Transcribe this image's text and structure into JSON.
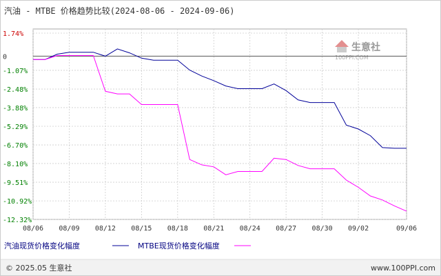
{
  "title": "汽油 - MTBE 价格趋势比较(2024-08-06 - 2024-09-06)",
  "watermark": {
    "name": "生意社",
    "url": "100PPI.COM"
  },
  "footer": {
    "left": "© 2025.05 生意社",
    "right": "www.100PPI.com"
  },
  "colors": {
    "series1": "#000099",
    "series2": "#ff00ff",
    "grid": "#cccccc",
    "axis": "#555555",
    "frame": "#aaaaaa"
  },
  "chart_data": {
    "type": "line",
    "ylim": [
      -12.32,
      1.74
    ],
    "y_ticks": [
      {
        "label": "1.74%",
        "value": 1.74,
        "color": "#cc0000"
      },
      {
        "label": "0",
        "value": 0,
        "color": "#333333"
      },
      {
        "label": "-1.07%",
        "value": -1.07,
        "color": "#008000"
      },
      {
        "label": "-2.48%",
        "value": -2.48,
        "color": "#008000"
      },
      {
        "label": "-3.88%",
        "value": -3.88,
        "color": "#008000"
      },
      {
        "label": "-5.29%",
        "value": -5.29,
        "color": "#008000"
      },
      {
        "label": "-6.70%",
        "value": -6.7,
        "color": "#008000"
      },
      {
        "label": "-8.10%",
        "value": -8.1,
        "color": "#008000"
      },
      {
        "label": "-9.51%",
        "value": -9.51,
        "color": "#008000"
      },
      {
        "label": "-10.92%",
        "value": -10.92,
        "color": "#008000"
      },
      {
        "label": "-12.32%",
        "value": -12.32,
        "color": "#008000"
      }
    ],
    "x_ticks": [
      {
        "label": "08/06",
        "index": 0
      },
      {
        "label": "08/09",
        "index": 3
      },
      {
        "label": "08/12",
        "index": 6
      },
      {
        "label": "08/15",
        "index": 9
      },
      {
        "label": "08/18",
        "index": 12
      },
      {
        "label": "08/21",
        "index": 15
      },
      {
        "label": "08/24",
        "index": 18
      },
      {
        "label": "08/27",
        "index": 21
      },
      {
        "label": "08/30",
        "index": 24
      },
      {
        "label": "09/02",
        "index": 27
      },
      {
        "label": "09/06",
        "index": 31
      }
    ],
    "x_count": 32,
    "series": [
      {
        "name": "汽油现货价格变化幅度",
        "values": [
          -0.25,
          -0.25,
          0.15,
          0.3,
          0.3,
          0.3,
          0.0,
          0.55,
          0.25,
          -0.15,
          -0.3,
          -0.3,
          -0.3,
          -1.05,
          -1.5,
          -1.85,
          -2.25,
          -2.45,
          -2.45,
          -2.45,
          -2.1,
          -2.6,
          -3.3,
          -3.5,
          -3.5,
          -3.5,
          -5.2,
          -5.5,
          -6.0,
          -6.9,
          -6.95,
          -6.95
        ]
      },
      {
        "name": "MTBE现货价格变化幅度",
        "values": [
          -0.25,
          -0.25,
          0.05,
          0.05,
          0.05,
          0.05,
          -2.65,
          -2.85,
          -2.85,
          -3.65,
          -3.65,
          -3.65,
          -3.65,
          -7.8,
          -8.2,
          -8.35,
          -8.95,
          -8.7,
          -8.7,
          -8.7,
          -7.7,
          -7.8,
          -8.25,
          -8.5,
          -8.5,
          -8.5,
          -9.35,
          -9.9,
          -10.55,
          -10.85,
          -11.3,
          -11.7
        ]
      }
    ]
  }
}
